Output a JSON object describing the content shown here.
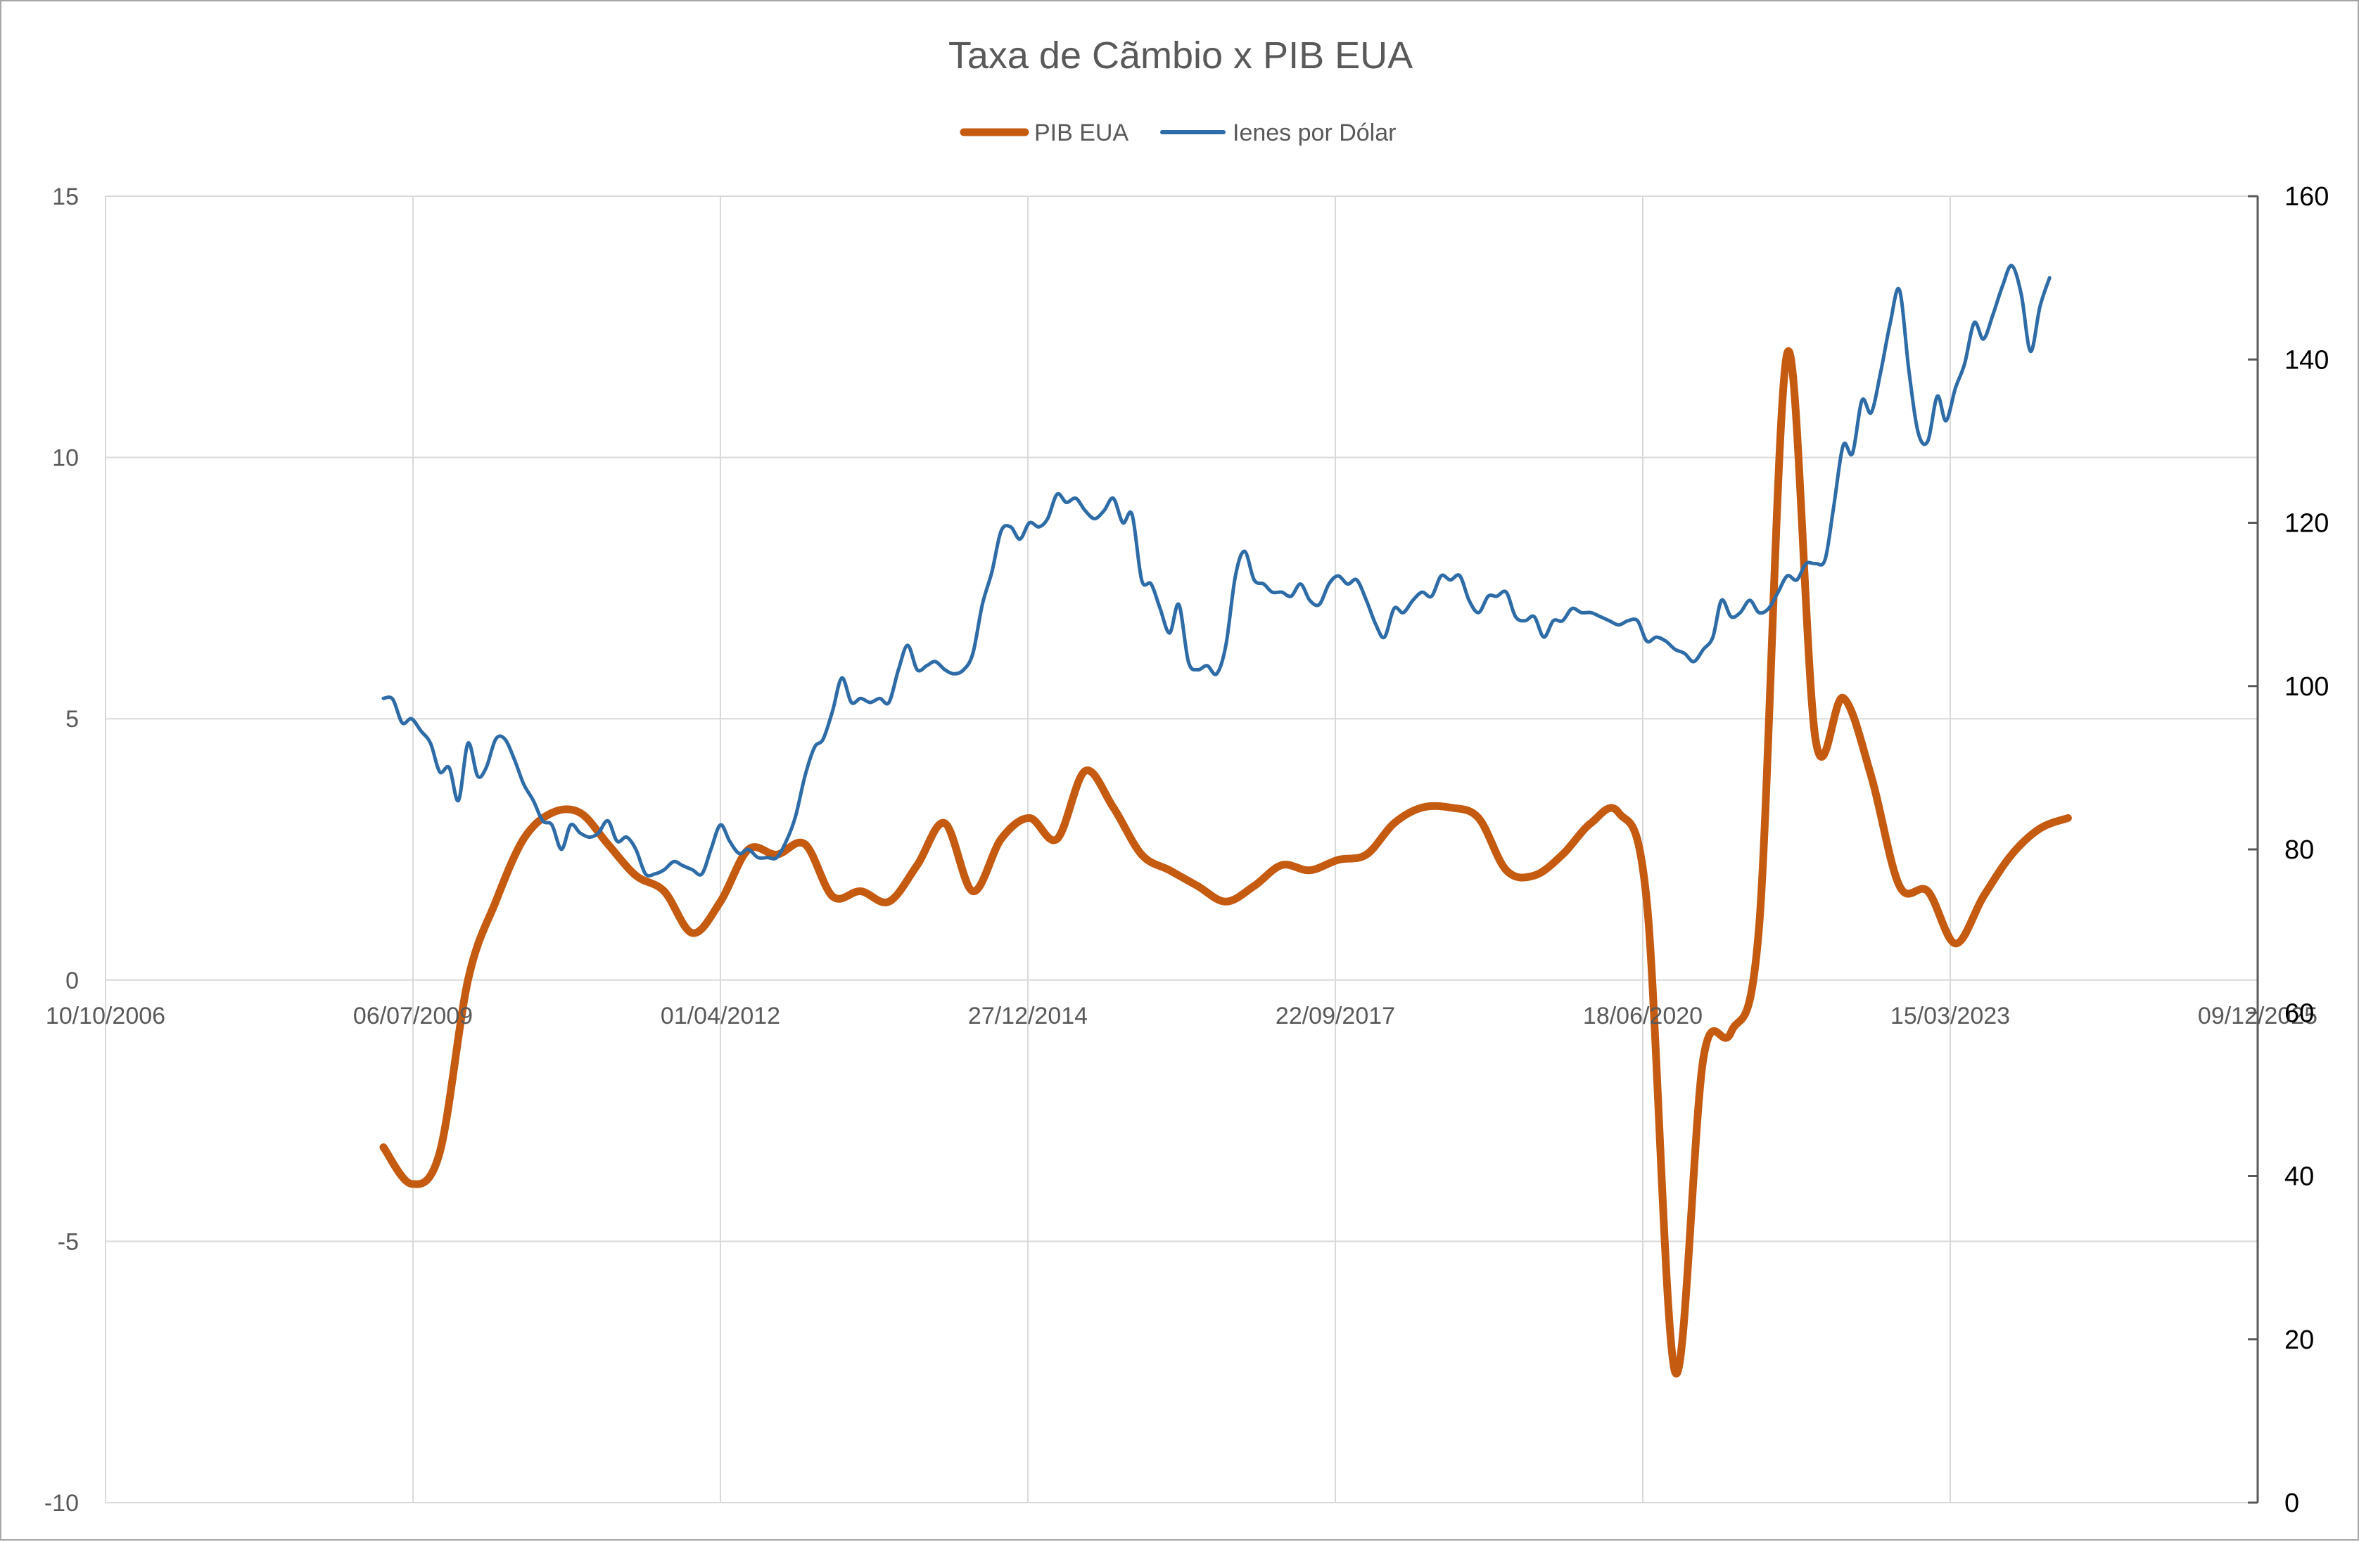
{
  "chart_data": {
    "type": "line",
    "title": "Taxa de Cãmbio x PIB EUA",
    "legend_position": "top",
    "grid": true,
    "x_axis": {
      "type": "date",
      "range": [
        "2006-10-10",
        "2025-12-09"
      ],
      "tick_dates": [
        "2006-10-10",
        "2009-07-06",
        "2012-04-01",
        "2014-12-27",
        "2017-09-22",
        "2020-06-18",
        "2023-03-15",
        "2025-12-09"
      ],
      "tick_labels": [
        "10/10/2006",
        "06/07/2009",
        "01/04/2012",
        "27/12/2014",
        "22/09/2017",
        "18/06/2020",
        "15/03/2023",
        "09/12/2025"
      ]
    },
    "y_left": {
      "range": [
        -10,
        15
      ],
      "ticks": [
        15,
        10,
        5,
        0,
        -5,
        -10
      ],
      "tick_labels": [
        "15",
        "10",
        "5",
        "0",
        "-5",
        "-10"
      ]
    },
    "y_right": {
      "range": [
        0,
        160
      ],
      "ticks": [
        160,
        140,
        120,
        100,
        80,
        60,
        40,
        20,
        0
      ],
      "tick_labels": [
        "160",
        "140",
        "120",
        "100",
        "80",
        "60",
        "40",
        "20",
        "0"
      ]
    },
    "series": [
      {
        "name": "PIB EUA",
        "axis": "left",
        "color": "#c55a11",
        "points": [
          [
            "2009-04-01",
            -3.2
          ],
          [
            "2009-07-01",
            -3.9
          ],
          [
            "2009-10-01",
            -3.3
          ],
          [
            "2010-01-01",
            0.0
          ],
          [
            "2010-04-01",
            1.5
          ],
          [
            "2010-07-01",
            2.7
          ],
          [
            "2010-10-01",
            3.2
          ],
          [
            "2011-01-01",
            3.2
          ],
          [
            "2011-04-01",
            2.6
          ],
          [
            "2011-07-01",
            2.0
          ],
          [
            "2011-10-01",
            1.7
          ],
          [
            "2012-01-01",
            0.9
          ],
          [
            "2012-04-01",
            1.5
          ],
          [
            "2012-07-01",
            2.5
          ],
          [
            "2012-10-01",
            2.4
          ],
          [
            "2013-01-01",
            2.6
          ],
          [
            "2013-04-01",
            1.6
          ],
          [
            "2013-07-01",
            1.7
          ],
          [
            "2013-10-01",
            1.5
          ],
          [
            "2014-01-01",
            2.2
          ],
          [
            "2014-04-01",
            3.0
          ],
          [
            "2014-07-01",
            1.7
          ],
          [
            "2014-10-01",
            2.7
          ],
          [
            "2015-01-01",
            3.1
          ],
          [
            "2015-04-01",
            2.7
          ],
          [
            "2015-07-01",
            4.0
          ],
          [
            "2015-10-01",
            3.3
          ],
          [
            "2016-01-01",
            2.4
          ],
          [
            "2016-04-01",
            2.1
          ],
          [
            "2016-07-01",
            1.8
          ],
          [
            "2016-10-01",
            1.5
          ],
          [
            "2017-01-01",
            1.8
          ],
          [
            "2017-04-01",
            2.2
          ],
          [
            "2017-07-01",
            2.1
          ],
          [
            "2017-10-01",
            2.3
          ],
          [
            "2018-01-01",
            2.4
          ],
          [
            "2018-04-01",
            3.0
          ],
          [
            "2018-07-01",
            3.3
          ],
          [
            "2018-10-01",
            3.3
          ],
          [
            "2019-01-01",
            3.1
          ],
          [
            "2019-04-01",
            2.1
          ],
          [
            "2019-07-01",
            2.0
          ],
          [
            "2019-10-01",
            2.4
          ],
          [
            "2020-01-01",
            3.0
          ],
          [
            "2020-04-01",
            3.2
          ],
          [
            "2020-07-01",
            1.5
          ],
          [
            "2020-10-01",
            -7.5
          ],
          [
            "2021-01-01",
            -1.5
          ],
          [
            "2021-04-01",
            -1.0
          ],
          [
            "2021-07-01",
            1.0
          ],
          [
            "2021-10-01",
            12.0
          ],
          [
            "2022-01-01",
            4.6
          ],
          [
            "2022-04-01",
            5.4
          ],
          [
            "2022-07-01",
            3.9
          ],
          [
            "2022-10-01",
            1.8
          ],
          [
            "2023-01-01",
            1.7
          ],
          [
            "2023-04-01",
            0.7
          ],
          [
            "2023-07-01",
            1.6
          ],
          [
            "2023-10-01",
            2.4
          ],
          [
            "2024-01-01",
            2.9
          ],
          [
            "2024-04-01",
            3.1
          ]
        ]
      },
      {
        "name": "Ienes por Dólar",
        "axis": "right",
        "color": "#2e6ca8",
        "points": [
          [
            "2009-04-01",
            98.5
          ],
          [
            "2009-05-01",
            98.4
          ],
          [
            "2009-06-01",
            95.5
          ],
          [
            "2009-07-01",
            96.0
          ],
          [
            "2009-08-01",
            94.5
          ],
          [
            "2009-09-01",
            93.0
          ],
          [
            "2009-10-01",
            89.5
          ],
          [
            "2009-11-01",
            90.0
          ],
          [
            "2009-12-01",
            86.0
          ],
          [
            "2010-01-01",
            93.0
          ],
          [
            "2010-02-01",
            89.0
          ],
          [
            "2010-03-01",
            90.0
          ],
          [
            "2010-04-01",
            93.5
          ],
          [
            "2010-05-01",
            93.5
          ],
          [
            "2010-06-01",
            91.0
          ],
          [
            "2010-07-01",
            88.0
          ],
          [
            "2010-08-01",
            86.0
          ],
          [
            "2010-09-01",
            83.5
          ],
          [
            "2010-10-01",
            83.0
          ],
          [
            "2010-11-01",
            80.0
          ],
          [
            "2010-12-01",
            83.0
          ],
          [
            "2011-01-01",
            82.0
          ],
          [
            "2011-02-01",
            81.5
          ],
          [
            "2011-03-01",
            82.0
          ],
          [
            "2011-04-01",
            83.5
          ],
          [
            "2011-05-01",
            81.0
          ],
          [
            "2011-06-01",
            81.5
          ],
          [
            "2011-07-01",
            80.0
          ],
          [
            "2011-08-01",
            77.0
          ],
          [
            "2011-09-01",
            77.0
          ],
          [
            "2011-10-01",
            77.5
          ],
          [
            "2011-11-01",
            78.5
          ],
          [
            "2011-12-01",
            78.0
          ],
          [
            "2012-01-01",
            77.5
          ],
          [
            "2012-02-01",
            77.0
          ],
          [
            "2012-03-01",
            80.0
          ],
          [
            "2012-04-01",
            83.0
          ],
          [
            "2012-05-01",
            81.0
          ],
          [
            "2012-06-01",
            79.5
          ],
          [
            "2012-07-01",
            80.0
          ],
          [
            "2012-08-01",
            79.0
          ],
          [
            "2012-09-01",
            79.0
          ],
          [
            "2012-10-01",
            79.0
          ],
          [
            "2012-11-01",
            81.0
          ],
          [
            "2012-12-01",
            84.0
          ],
          [
            "2013-01-01",
            89.0
          ],
          [
            "2013-02-01",
            92.5
          ],
          [
            "2013-03-01",
            93.5
          ],
          [
            "2013-04-01",
            97.0
          ],
          [
            "2013-05-01",
            101.0
          ],
          [
            "2013-06-01",
            98.0
          ],
          [
            "2013-07-01",
            98.5
          ],
          [
            "2013-08-01",
            98.0
          ],
          [
            "2013-09-01",
            98.5
          ],
          [
            "2013-10-01",
            98.0
          ],
          [
            "2013-11-01",
            102.0
          ],
          [
            "2013-12-01",
            105.0
          ],
          [
            "2014-01-01",
            102.0
          ],
          [
            "2014-02-01",
            102.5
          ],
          [
            "2014-03-01",
            103.0
          ],
          [
            "2014-04-01",
            102.0
          ],
          [
            "2014-05-01",
            101.5
          ],
          [
            "2014-06-01",
            102.0
          ],
          [
            "2014-07-01",
            104.0
          ],
          [
            "2014-08-01",
            110.0
          ],
          [
            "2014-09-01",
            114.0
          ],
          [
            "2014-10-01",
            119.0
          ],
          [
            "2014-11-01",
            119.5
          ],
          [
            "2014-12-01",
            118.0
          ],
          [
            "2015-01-01",
            120.0
          ],
          [
            "2015-02-01",
            119.5
          ],
          [
            "2015-03-01",
            120.5
          ],
          [
            "2015-04-01",
            123.5
          ],
          [
            "2015-05-01",
            122.5
          ],
          [
            "2015-06-01",
            123.0
          ],
          [
            "2015-07-01",
            121.5
          ],
          [
            "2015-08-01",
            120.5
          ],
          [
            "2015-09-01",
            121.5
          ],
          [
            "2015-10-01",
            123.0
          ],
          [
            "2015-11-01",
            120.0
          ],
          [
            "2015-12-01",
            121.0
          ],
          [
            "2016-01-01",
            113.0
          ],
          [
            "2016-02-01",
            112.5
          ],
          [
            "2016-03-01",
            109.5
          ],
          [
            "2016-04-01",
            106.5
          ],
          [
            "2016-05-01",
            110.0
          ],
          [
            "2016-06-01",
            103.0
          ],
          [
            "2016-07-01",
            102.0
          ],
          [
            "2016-08-01",
            102.5
          ],
          [
            "2016-09-01",
            101.5
          ],
          [
            "2016-10-01",
            105.0
          ],
          [
            "2016-11-01",
            113.5
          ],
          [
            "2016-12-01",
            116.5
          ],
          [
            "2017-01-01",
            113.0
          ],
          [
            "2017-02-01",
            112.5
          ],
          [
            "2017-03-01",
            111.5
          ],
          [
            "2017-04-01",
            111.5
          ],
          [
            "2017-05-01",
            111.0
          ],
          [
            "2017-06-01",
            112.5
          ],
          [
            "2017-07-01",
            110.5
          ],
          [
            "2017-08-01",
            110.0
          ],
          [
            "2017-09-01",
            112.5
          ],
          [
            "2017-10-01",
            113.5
          ],
          [
            "2017-11-01",
            112.5
          ],
          [
            "2017-12-01",
            113.0
          ],
          [
            "2018-01-01",
            110.5
          ],
          [
            "2018-02-01",
            107.5
          ],
          [
            "2018-03-01",
            106.0
          ],
          [
            "2018-04-01",
            109.5
          ],
          [
            "2018-05-01",
            109.0
          ],
          [
            "2018-06-01",
            110.5
          ],
          [
            "2018-07-01",
            111.5
          ],
          [
            "2018-08-01",
            111.0
          ],
          [
            "2018-09-01",
            113.5
          ],
          [
            "2018-10-01",
            113.0
          ],
          [
            "2018-11-01",
            113.5
          ],
          [
            "2018-12-01",
            110.5
          ],
          [
            "2019-01-01",
            109.0
          ],
          [
            "2019-02-01",
            111.0
          ],
          [
            "2019-03-01",
            111.0
          ],
          [
            "2019-04-01",
            111.5
          ],
          [
            "2019-05-01",
            108.5
          ],
          [
            "2019-06-01",
            108.0
          ],
          [
            "2019-07-01",
            108.5
          ],
          [
            "2019-08-01",
            106.0
          ],
          [
            "2019-09-01",
            108.0
          ],
          [
            "2019-10-01",
            108.0
          ],
          [
            "2019-11-01",
            109.5
          ],
          [
            "2019-12-01",
            109.0
          ],
          [
            "2020-01-01",
            109.0
          ],
          [
            "2020-02-01",
            108.5
          ],
          [
            "2020-03-01",
            108.0
          ],
          [
            "2020-04-01",
            107.5
          ],
          [
            "2020-05-01",
            108.0
          ],
          [
            "2020-06-01",
            108.0
          ],
          [
            "2020-07-01",
            105.5
          ],
          [
            "2020-08-01",
            106.0
          ],
          [
            "2020-09-01",
            105.5
          ],
          [
            "2020-10-01",
            104.5
          ],
          [
            "2020-11-01",
            104.0
          ],
          [
            "2020-12-01",
            103.0
          ],
          [
            "2021-01-01",
            104.5
          ],
          [
            "2021-02-01",
            106.0
          ],
          [
            "2021-03-01",
            110.5
          ],
          [
            "2021-04-01",
            108.5
          ],
          [
            "2021-05-01",
            109.0
          ],
          [
            "2021-06-01",
            110.5
          ],
          [
            "2021-07-01",
            109.0
          ],
          [
            "2021-08-01",
            109.5
          ],
          [
            "2021-09-01",
            111.5
          ],
          [
            "2021-10-01",
            113.5
          ],
          [
            "2021-11-01",
            113.0
          ],
          [
            "2021-12-01",
            115.0
          ],
          [
            "2022-01-01",
            115.0
          ],
          [
            "2022-02-01",
            115.5
          ],
          [
            "2022-03-01",
            122.0
          ],
          [
            "2022-04-01",
            129.5
          ],
          [
            "2022-05-01",
            128.5
          ],
          [
            "2022-06-01",
            135.0
          ],
          [
            "2022-07-01",
            133.5
          ],
          [
            "2022-08-01",
            138.5
          ],
          [
            "2022-09-01",
            144.5
          ],
          [
            "2022-10-01",
            148.5
          ],
          [
            "2022-11-01",
            138.5
          ],
          [
            "2022-12-01",
            131.0
          ],
          [
            "2023-01-01",
            130.0
          ],
          [
            "2023-02-01",
            135.5
          ],
          [
            "2023-03-01",
            132.5
          ],
          [
            "2023-04-01",
            136.5
          ],
          [
            "2023-05-01",
            139.5
          ],
          [
            "2023-06-01",
            144.5
          ],
          [
            "2023-07-01",
            142.5
          ],
          [
            "2023-08-01",
            145.5
          ],
          [
            "2023-09-01",
            149.0
          ],
          [
            "2023-10-01",
            151.5
          ],
          [
            "2023-11-01",
            148.0
          ],
          [
            "2023-12-01",
            141.0
          ],
          [
            "2024-01-01",
            146.5
          ],
          [
            "2024-02-01",
            150.0
          ]
        ]
      }
    ]
  }
}
